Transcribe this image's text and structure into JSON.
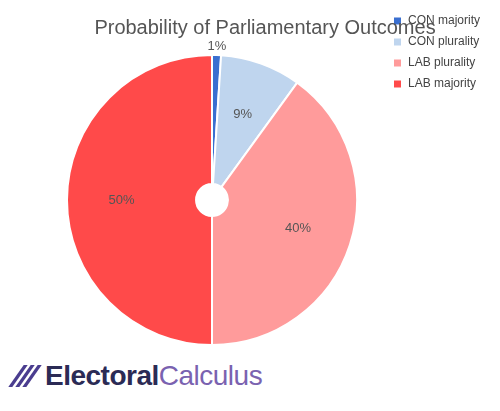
{
  "chart_data": {
    "type": "doughnut",
    "title": "Probability of Parliamentary Outcomes",
    "categories": [
      "CON majority",
      "CON plurality",
      "LAB plurality",
      "LAB majority"
    ],
    "values": [
      1,
      9,
      40,
      50
    ],
    "value_labels": [
      "1%",
      "9%",
      "40%",
      "50%"
    ],
    "colors": [
      "#3a6fd0",
      "#bfd5ee",
      "#ff9b9b",
      "#ff4a4a"
    ],
    "data_labels": true,
    "legend": "right",
    "annotations": [
      "Electoral",
      "Calculus"
    ]
  }
}
